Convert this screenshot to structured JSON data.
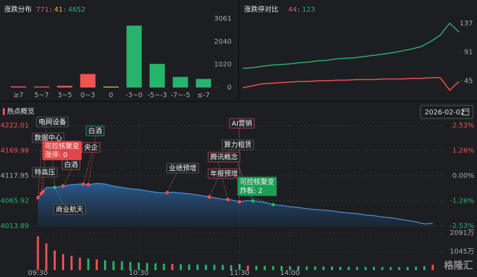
{
  "chart_data": [
    {
      "type": "bar",
      "title": "涨跌分布",
      "summary": [
        771,
        41,
        4652
      ],
      "summary_separator": ":",
      "summary_colors": [
        "#f0524f",
        "#e8b928",
        "#26b36c"
      ],
      "categories": [
        "≥7",
        "5~7",
        "3~5",
        "0~3",
        "0",
        "-3~0",
        "-5~-3",
        "-7~-5",
        "≤-7"
      ],
      "values": [
        50,
        45,
        76,
        600,
        41,
        2750,
        1050,
        470,
        382
      ],
      "colors": [
        "#f0524f",
        "#f0524f",
        "#f0524f",
        "#f0524f",
        "#e8b928",
        "#26b36c",
        "#26b36c",
        "#26b36c",
        "#26b36c"
      ],
      "ylim": [
        0,
        3061
      ],
      "yticks": [
        0,
        1020,
        2040,
        3061
      ]
    },
    {
      "type": "line",
      "title": "涨跌停对比",
      "summary": [
        44,
        123
      ],
      "summary_separator": ":",
      "summary_colors": [
        "#f0524f",
        "#26b36c"
      ],
      "series": [
        {
          "color": "#26b36c",
          "values": [
            65,
            66,
            68,
            70,
            71,
            72,
            74,
            75,
            77,
            78,
            80,
            81,
            82,
            84,
            86,
            88,
            90,
            93,
            96,
            100,
            108,
            118,
            137,
            123
          ]
        },
        {
          "color": "#f0524f",
          "values": [
            34,
            37,
            40,
            41,
            42,
            43,
            44,
            44,
            45,
            45,
            46,
            46,
            47,
            47,
            47,
            48,
            48,
            48,
            49,
            49,
            50,
            50,
            30,
            44
          ]
        }
      ],
      "ylim": [
        20,
        150
      ],
      "yticks": [
        45,
        91,
        137
      ]
    },
    {
      "type": "intraday",
      "title": "热点概览",
      "date": "2026-02-02",
      "color": "#4a90d9",
      "x": [
        0,
        5,
        10,
        15,
        20,
        25,
        30,
        35,
        40,
        45,
        50,
        55,
        60,
        65,
        70,
        75,
        80,
        85,
        90,
        95,
        100,
        105,
        110,
        115,
        120,
        125,
        130,
        135,
        140,
        145,
        150,
        155,
        160,
        165,
        170,
        175,
        180,
        185,
        190,
        195,
        200,
        205,
        210,
        215,
        220,
        225,
        230,
        235
      ],
      "values": [
        4072.3,
        4093.7,
        4093.7,
        4096.5,
        4099.4,
        4100.8,
        4099.4,
        4102.3,
        4100.8,
        4096.5,
        4093.7,
        4090.8,
        4089.4,
        4086.6,
        4083.7,
        4082.3,
        4083.7,
        4082.3,
        4080.9,
        4078.0,
        4075.2,
        4072.3,
        4069.5,
        4068.1,
        4063.8,
        4066.6,
        4065.2,
        4062.3,
        4058.1,
        4056.6,
        4053.8,
        4052.4,
        4049.5,
        4048.1,
        4046.7,
        4045.2,
        4042.4,
        4041.0,
        4039.5,
        4036.7,
        4035.3,
        4032.4,
        4031.0,
        4028.1,
        4025.3,
        4022.4,
        4018.2,
        4019.6
      ],
      "xlim": [
        0,
        240
      ],
      "xticks": [
        {
          "value": 0,
          "label": "09:30"
        },
        {
          "value": 60,
          "label": "10:30"
        },
        {
          "value": 120,
          "label": "11:30"
        },
        {
          "value": 150,
          "label": "14:00"
        }
      ],
      "ylim": [
        4013.89,
        4222.01
      ],
      "yticks": [
        4222.01,
        4169.98,
        4117.95,
        4065.92,
        4013.89
      ],
      "y2lim": [
        -2.53,
        2.53
      ],
      "y2ticks": [
        {
          "value": 2.53,
          "label": "2.53%"
        },
        {
          "value": 1.26,
          "label": "1.26%"
        },
        {
          "value": 0,
          "label": "0.00%"
        },
        {
          "value": -1.26,
          "label": "-1.26%"
        },
        {
          "value": -2.53,
          "label": "-2.53%"
        }
      ],
      "volume": {
        "values": [
          1900,
          1500,
          1100,
          900,
          800,
          700,
          650,
          600,
          550,
          500,
          500,
          450,
          420,
          400,
          380,
          360,
          350,
          330,
          320,
          310,
          300,
          300,
          290,
          280,
          350,
          260,
          250,
          240,
          230,
          230,
          220,
          220,
          210,
          210,
          200,
          200,
          190,
          190,
          180,
          180,
          180,
          170,
          170,
          170,
          180,
          190,
          220,
          300
        ],
        "ylim": [
          0,
          2091
        ],
        "yticks": [
          {
            "value": 1045,
            "label": "1045万"
          },
          {
            "value": 2091,
            "label": "2091万"
          }
        ]
      },
      "annotations": [
        {
          "label": "电网设备",
          "x": 3,
          "color": "#f0524f"
        },
        {
          "label": "数据中心",
          "x": 0,
          "color": "#f0524f"
        },
        {
          "label": "特高压",
          "x": 2,
          "color": "#f0524f"
        },
        {
          "label": "可控核聚变",
          "detail": "涨停: 0",
          "x": 10,
          "color": "#f0524f"
        },
        {
          "label": "白酒",
          "x": 15,
          "color": "#f0524f"
        },
        {
          "label": "白酒",
          "x": 30,
          "color": "#f0524f"
        },
        {
          "label": "央企",
          "x": 27,
          "color": "#f0524f"
        },
        {
          "label": "商业航天",
          "x": 10,
          "color": "#26b36c"
        },
        {
          "label": "业绩预增",
          "x": 77,
          "color": "#f0524f"
        },
        {
          "label": "年报预增",
          "x": 102,
          "color": "#f0524f"
        },
        {
          "label": "腾讯概念",
          "x": 113,
          "color": "#f0524f"
        },
        {
          "label": "算力租赁",
          "x": 128,
          "color": "#26b36c"
        },
        {
          "label": "AI营销",
          "x": 120,
          "color": "#f0524f"
        },
        {
          "label": "可控核聚变",
          "detail": "炸板: 2",
          "x": 140,
          "color": "#26b36c"
        }
      ]
    }
  ],
  "watermark": "格隆汇"
}
